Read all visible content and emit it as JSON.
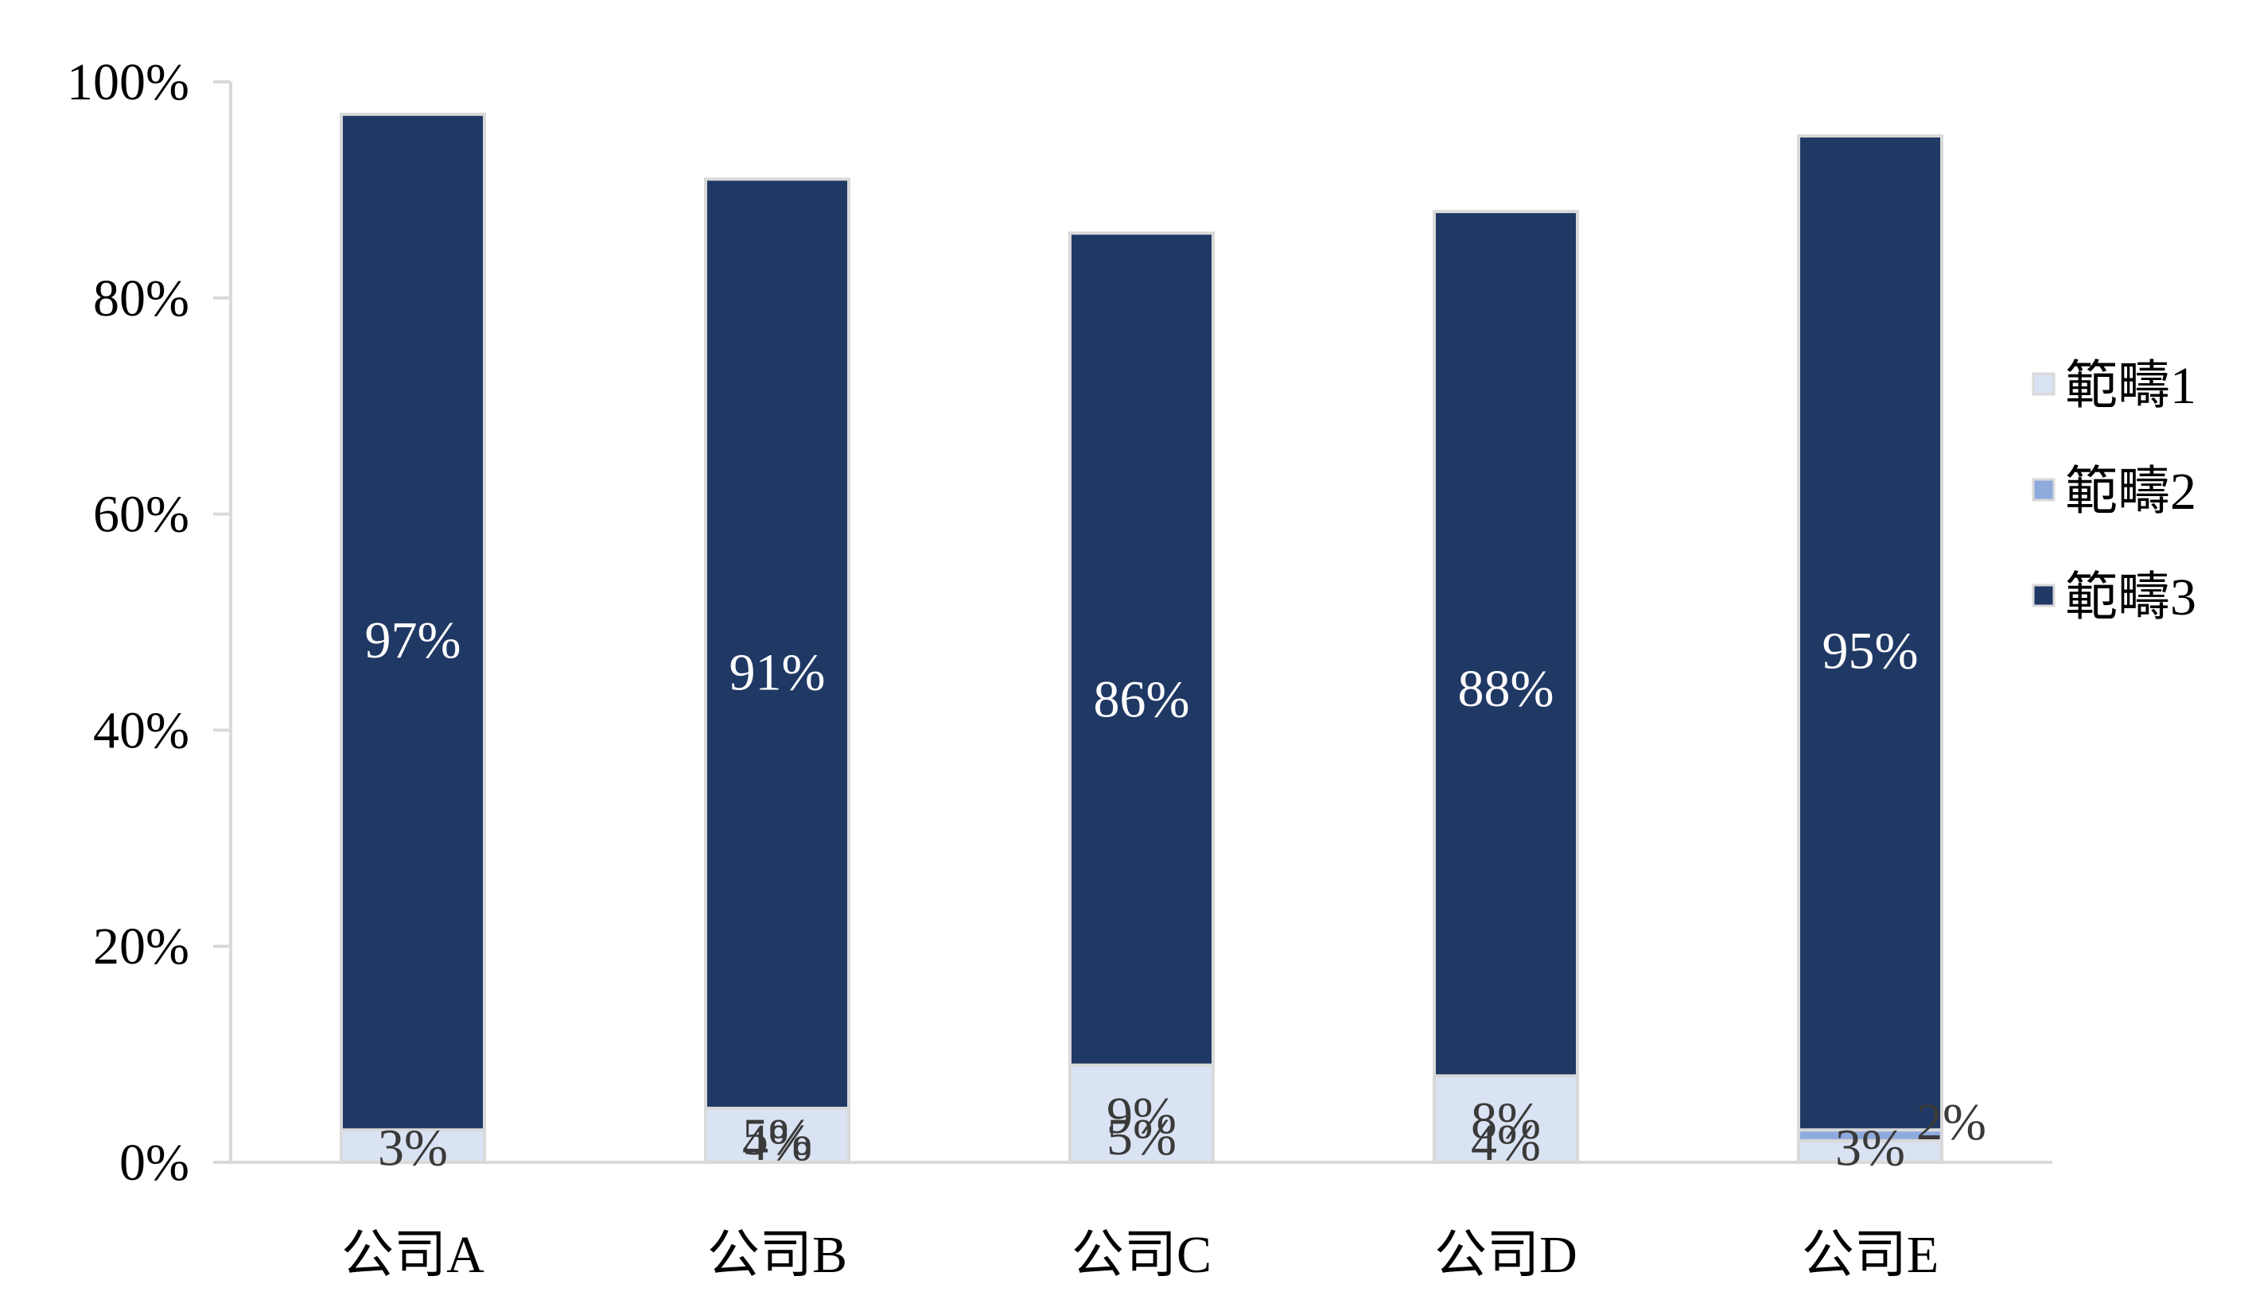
{
  "chart_data": {
    "type": "bar",
    "stacked": true,
    "categories": [
      "公司A",
      "公司B",
      "公司C",
      "公司D",
      "公司E"
    ],
    "series": [
      {
        "name": "範疇3",
        "values": [
          97,
          91,
          86,
          88,
          95
        ],
        "color": "#203864",
        "label_color": "#ffffff"
      },
      {
        "name": "範疇2",
        "values": [
          0,
          4,
          5,
          4,
          3
        ],
        "color": "#8faadc",
        "label_color": "#3a3a3a"
      },
      {
        "name": "範疇1",
        "values": [
          3,
          5,
          9,
          8,
          2
        ],
        "color": "#dae3f3",
        "label_color": "#3a3a3a"
      }
    ],
    "data_labels": [
      [
        "97%",
        "91%",
        "86%",
        "88%",
        "95%"
      ],
      [
        "",
        "4%",
        "5%",
        "4%",
        "3%"
      ],
      [
        "3%",
        "5%",
        "9%",
        "8%",
        "2%"
      ]
    ],
    "y_ticks": [
      "0%",
      "20%",
      "40%",
      "60%",
      "80%",
      "100%"
    ],
    "ylim": [
      0,
      100
    ],
    "legend": {
      "position": "right",
      "order": [
        "範疇1",
        "範疇2",
        "範疇3"
      ]
    },
    "grid": false,
    "axis_color": "#d9d9d9"
  }
}
